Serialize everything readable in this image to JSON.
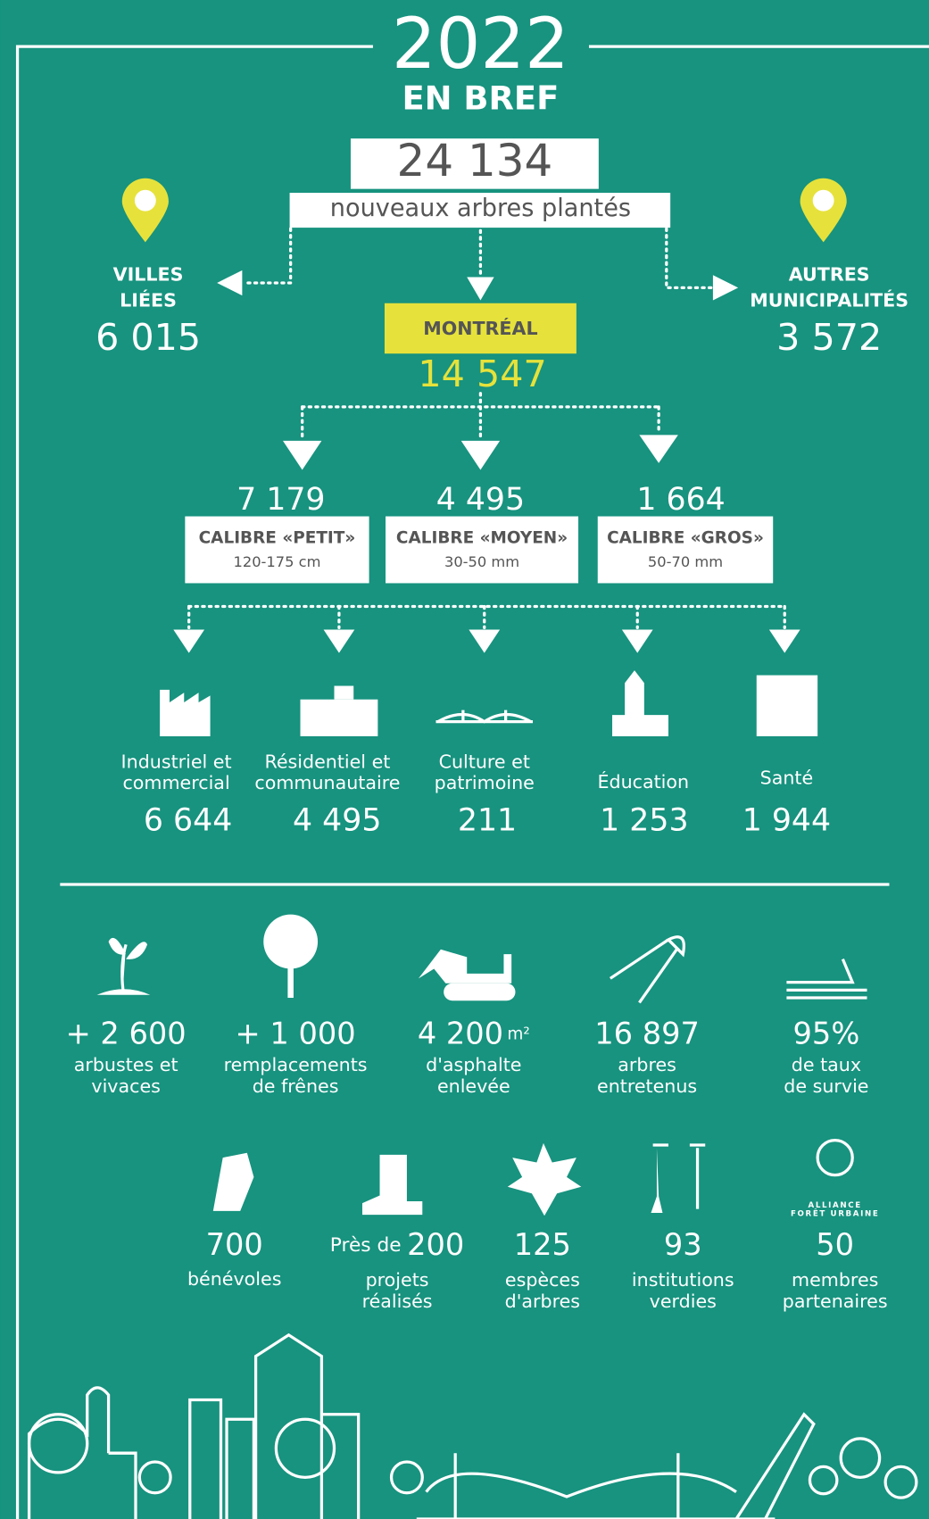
{
  "header": {
    "year": "2022",
    "subtitle": "EN BREF"
  },
  "total": {
    "value": "24 134",
    "label": "nouveaux arbres plantés"
  },
  "regions": [
    {
      "lines": [
        "VILLES",
        "LIÉES"
      ],
      "value": "6 015"
    },
    {
      "lines": [
        "MONTRÉAL"
      ],
      "value": "14 547"
    },
    {
      "lines": [
        "AUTRES",
        "MUNICIPALITÉS"
      ],
      "value": "3 572"
    }
  ],
  "calibres": [
    {
      "value": "7 179",
      "label": "CALIBRE «PETIT»",
      "size": "120-175 cm"
    },
    {
      "value": "4 495",
      "label": "CALIBRE «MOYEN»",
      "size": "30-50 mm"
    },
    {
      "value": "1 664",
      "label": "CALIBRE «GROS»",
      "size": "50-70 mm"
    }
  ],
  "sectors": [
    {
      "lines": [
        "Industriel et",
        "commercial"
      ],
      "value": "6 644"
    },
    {
      "lines": [
        "Résidentiel et",
        "communautaire"
      ],
      "value": "4 495"
    },
    {
      "lines": [
        "Culture et",
        "patrimoine"
      ],
      "value": "211"
    },
    {
      "lines": [
        "Éducation"
      ],
      "value": "1 253"
    },
    {
      "lines": [
        "Santé"
      ],
      "value": "1 944"
    }
  ],
  "stats_row1": [
    {
      "value": "+ 2 600",
      "lines": [
        "arbustes et",
        "vivaces"
      ]
    },
    {
      "value": "+ 1 000",
      "lines": [
        "remplacements",
        "de frênes"
      ]
    },
    {
      "value": "4 200",
      "unit": "m²",
      "lines": [
        "d'asphalte",
        "enlevée"
      ]
    },
    {
      "value": "16 897",
      "lines": [
        "arbres",
        "entretenus"
      ]
    },
    {
      "value": "95%",
      "lines": [
        "de taux",
        "de survie"
      ]
    }
  ],
  "stats_row2": [
    {
      "value": "700",
      "lines": [
        "bénévoles"
      ]
    },
    {
      "prefix": "Près de",
      "value": "200",
      "lines": [
        "projets",
        "réalisés"
      ]
    },
    {
      "value": "125",
      "lines": [
        "espèces",
        "d'arbres"
      ]
    },
    {
      "value": "93",
      "lines": [
        "institutions",
        "verdies"
      ]
    },
    {
      "value": "50",
      "lines": [
        "membres",
        "partenaires"
      ]
    }
  ],
  "logo": [
    "ALLIANCE",
    "FORÊT URBAINE"
  ]
}
